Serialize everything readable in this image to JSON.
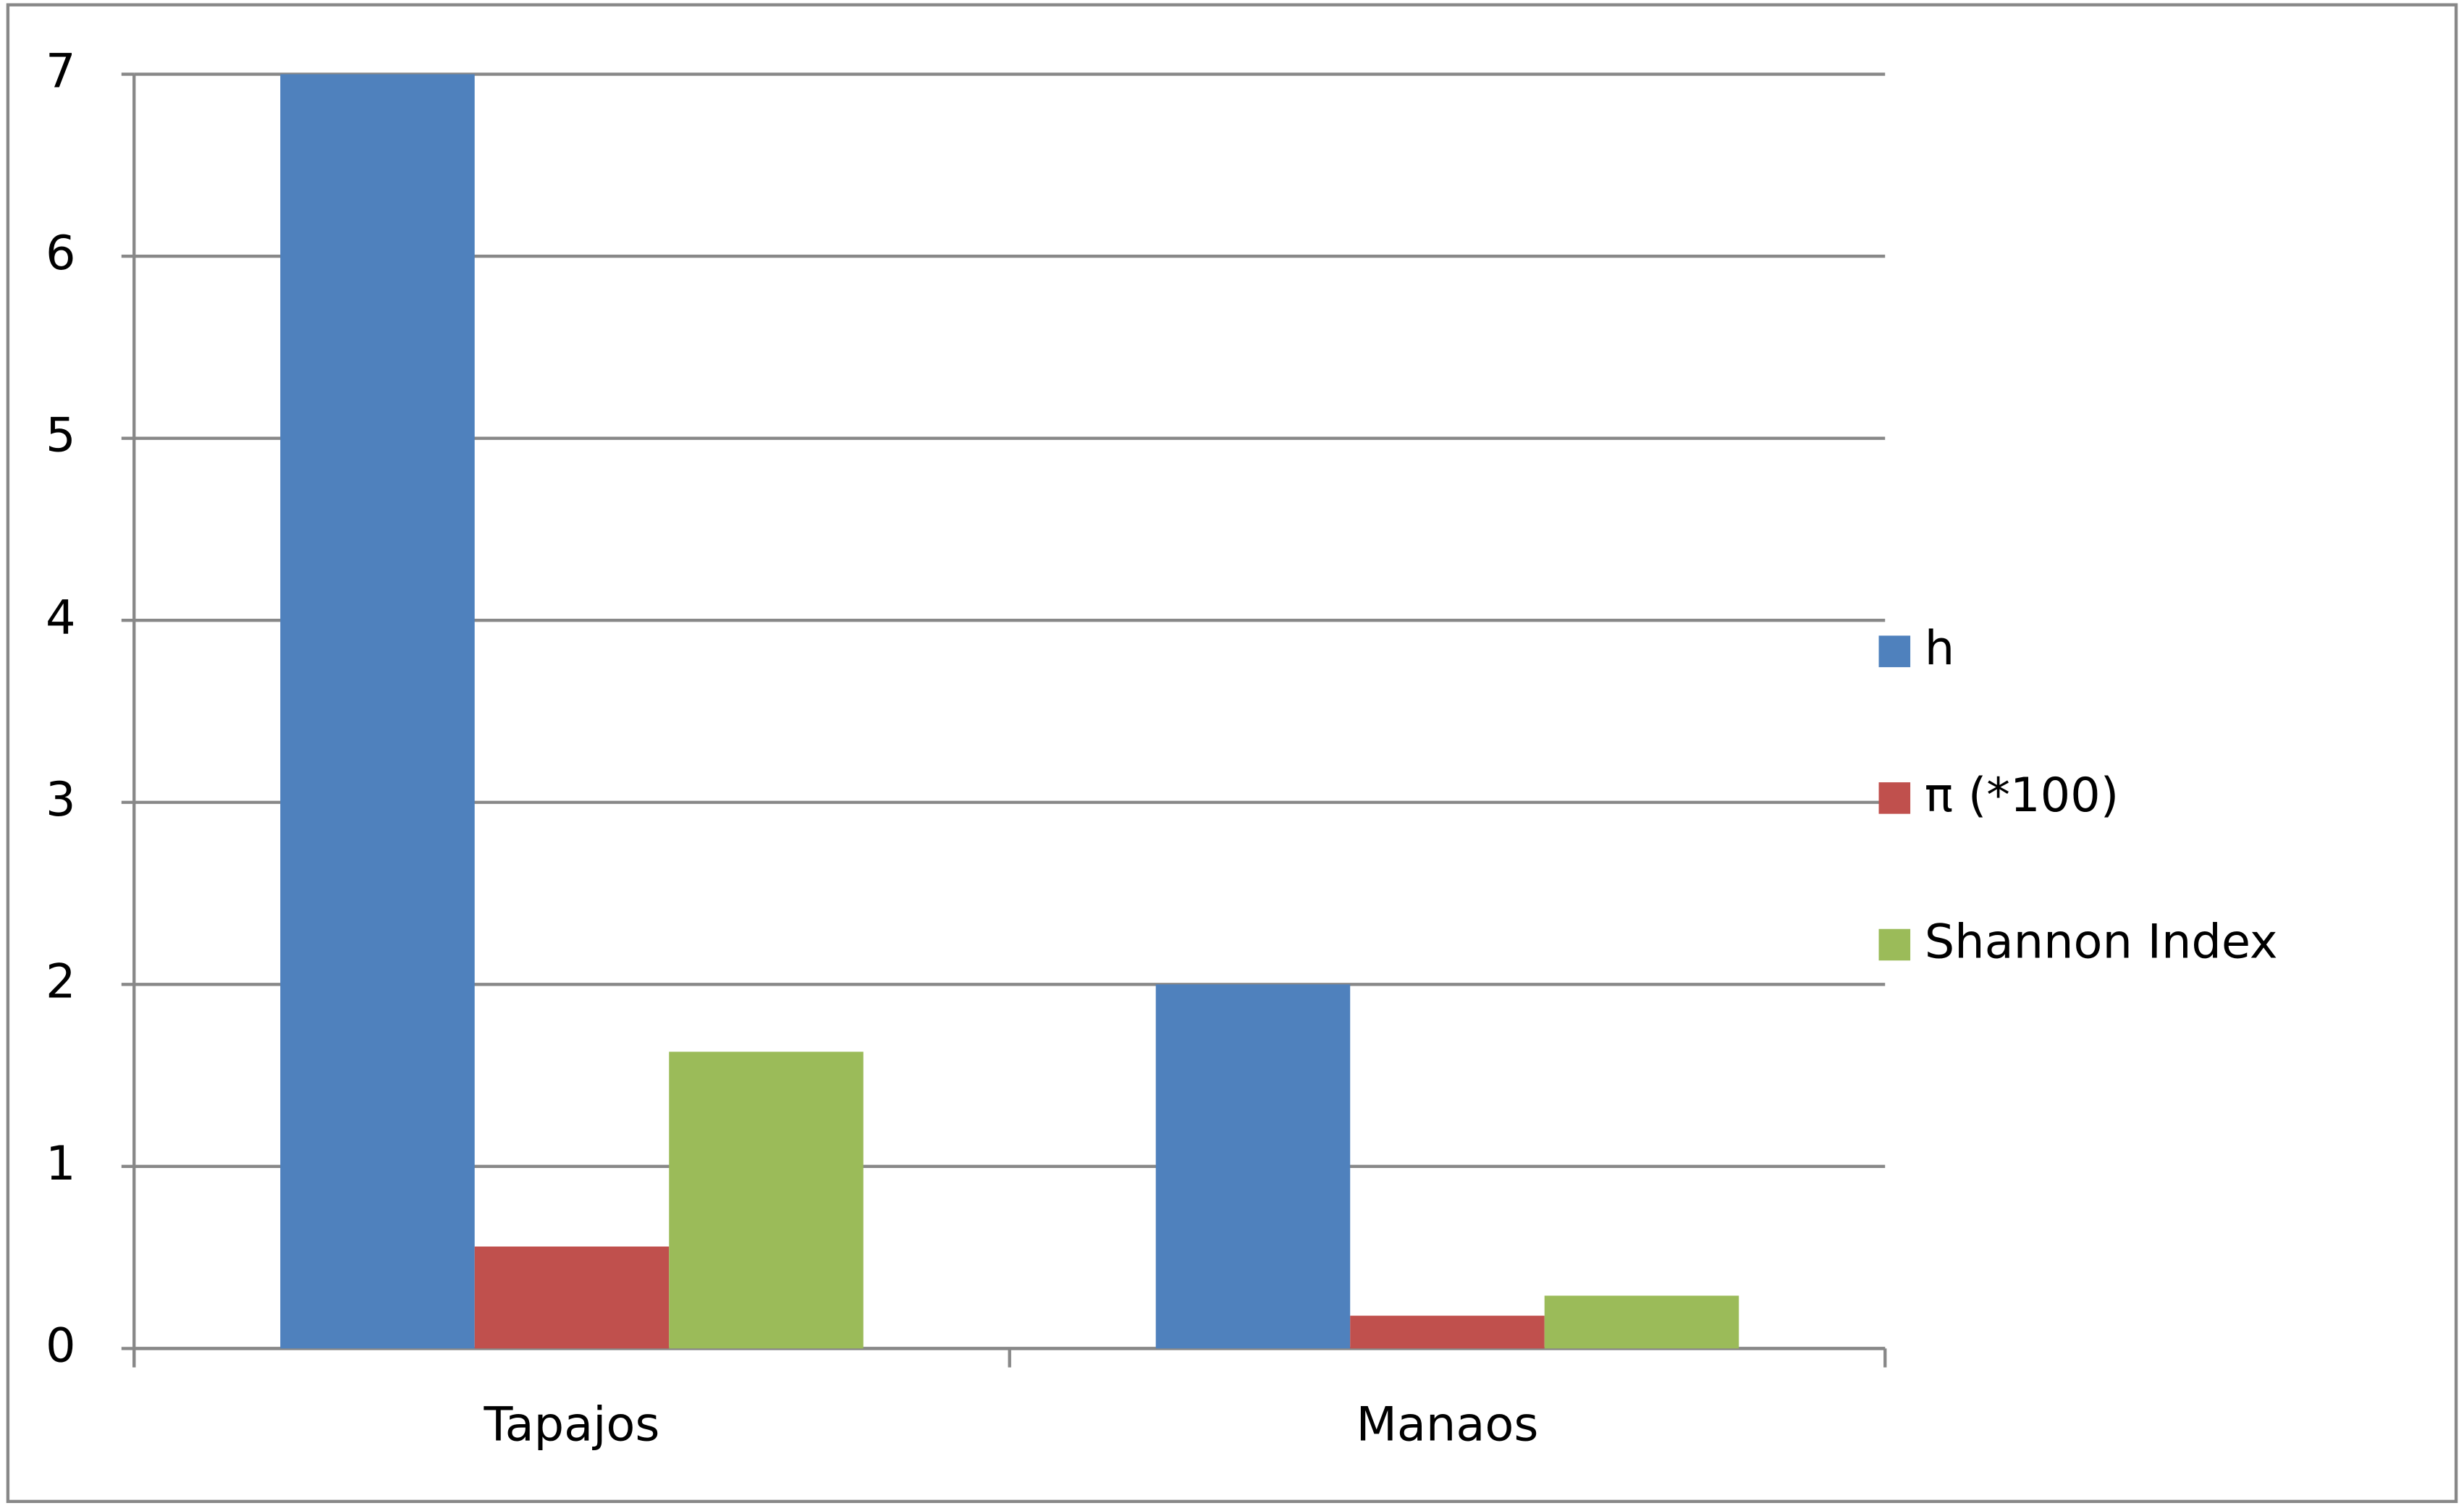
{
  "chart_data": {
    "type": "bar",
    "categories": [
      "Tapajos",
      "Manaos"
    ],
    "series": [
      {
        "name": "h",
        "color": "#4f81bd",
        "values": [
          7,
          2
        ]
      },
      {
        "name": "π (*100)",
        "color": "#c0504d",
        "values": [
          0.56,
          0.18
        ]
      },
      {
        "name": "Shannon Index",
        "color": "#9bbb59",
        "values": [
          1.63,
          0.29
        ]
      }
    ],
    "ylim": [
      0,
      7
    ],
    "yticks": [
      0,
      1,
      2,
      3,
      4,
      5,
      6,
      7
    ],
    "grid": true,
    "legend": "right"
  }
}
